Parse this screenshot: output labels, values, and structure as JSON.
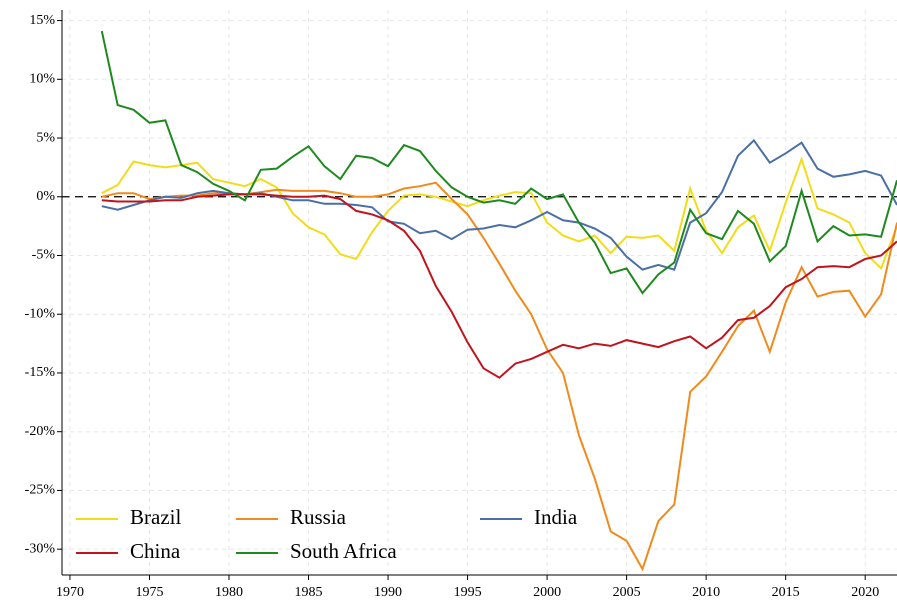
{
  "chart_data": {
    "type": "line",
    "x": [
      1972,
      1973,
      1974,
      1975,
      1976,
      1977,
      1978,
      1979,
      1980,
      1981,
      1982,
      1983,
      1984,
      1985,
      1986,
      1987,
      1988,
      1989,
      1990,
      1991,
      1992,
      1993,
      1994,
      1995,
      1996,
      1997,
      1998,
      1999,
      2000,
      2001,
      2002,
      2003,
      2004,
      2005,
      2006,
      2007,
      2008,
      2009,
      2010,
      2011,
      2012,
      2013,
      2014,
      2015,
      2016,
      2017,
      2018,
      2019,
      2020,
      2021,
      2022
    ],
    "series": [
      {
        "name": "Brazil",
        "color": "#f2dc1a",
        "values": [
          0.3,
          1.0,
          3.0,
          2.7,
          2.5,
          2.7,
          2.9,
          1.5,
          1.2,
          0.9,
          1.5,
          0.8,
          -1.4,
          -2.6,
          -3.2,
          -4.9,
          -5.3,
          -3.0,
          -1.2,
          0.1,
          0.2,
          0.0,
          -0.4,
          -0.8,
          -0.3,
          0.1,
          0.4,
          0.3,
          -2.2,
          -3.3,
          -3.8,
          -3.3,
          -4.8,
          -3.4,
          -3.5,
          -3.3,
          -4.6,
          0.7,
          -2.9,
          -4.8,
          -2.6,
          -1.6,
          -4.6,
          -0.5,
          3.2,
          -1.0,
          -1.5,
          -2.2,
          -4.8,
          -6.1,
          -2.5
        ]
      },
      {
        "name": "Russia",
        "color": "#f08a1c",
        "values": [
          0.0,
          0.3,
          0.3,
          -0.2,
          0.0,
          0.1,
          0.1,
          0.3,
          0.3,
          0.2,
          0.4,
          0.6,
          0.5,
          0.5,
          0.5,
          0.3,
          0.0,
          0.0,
          0.2,
          0.7,
          0.9,
          1.2,
          -0.2,
          -1.5,
          -3.5,
          -5.7,
          -8.0,
          -10.0,
          -13.0,
          -15.0,
          -20.3,
          -24.0,
          -28.5,
          -29.3,
          -31.7,
          -27.6,
          -26.2,
          -16.6,
          -15.3,
          -13.2,
          -11.0,
          -9.7,
          -13.2,
          -9.0,
          -6.0,
          -8.5,
          -8.1,
          -8.0,
          -10.2,
          -8.3,
          -2.2
        ]
      },
      {
        "name": "India",
        "color": "#4a6fa5",
        "values": [
          -0.8,
          -1.1,
          -0.7,
          -0.3,
          0.0,
          -0.1,
          0.3,
          0.5,
          0.3,
          0.2,
          0.3,
          0.0,
          -0.3,
          -0.3,
          -0.6,
          -0.6,
          -0.7,
          -0.9,
          -2.1,
          -2.3,
          -3.1,
          -2.9,
          -3.6,
          -2.8,
          -2.7,
          -2.4,
          -2.6,
          -2.0,
          -1.3,
          -2.0,
          -2.2,
          -2.7,
          -3.5,
          -5.1,
          -6.2,
          -5.8,
          -6.2,
          -2.2,
          -1.4,
          0.4,
          3.5,
          4.8,
          2.9,
          3.7,
          4.6,
          2.4,
          1.7,
          1.9,
          2.2,
          1.8,
          -0.7
        ]
      },
      {
        "name": "China",
        "color": "#c0141c",
        "values": [
          -0.3,
          -0.4,
          -0.4,
          -0.4,
          -0.3,
          -0.3,
          0.0,
          0.1,
          0.2,
          0.2,
          0.2,
          0.1,
          0.0,
          0.0,
          0.1,
          -0.2,
          -1.2,
          -1.5,
          -2.0,
          -2.9,
          -4.6,
          -7.6,
          -9.8,
          -12.4,
          -14.6,
          -15.4,
          -14.2,
          -13.8,
          -13.2,
          -12.6,
          -12.9,
          -12.5,
          -12.7,
          -12.2,
          -12.5,
          -12.8,
          -12.3,
          -11.9,
          -12.9,
          -12.0,
          -10.5,
          -10.3,
          -9.3,
          -7.7,
          -7.0,
          -6.0,
          -5.9,
          -6.0,
          -5.3,
          -5.0,
          -3.8
        ]
      },
      {
        "name": "South Africa",
        "color": "#1e8a1e",
        "values": [
          14.1,
          7.8,
          7.4,
          6.3,
          6.5,
          2.7,
          2.1,
          1.1,
          0.5,
          -0.3,
          2.3,
          2.4,
          3.4,
          4.3,
          2.6,
          1.5,
          3.5,
          3.3,
          2.6,
          4.4,
          3.9,
          2.2,
          0.8,
          0.0,
          -0.5,
          -0.3,
          -0.6,
          0.7,
          -0.2,
          0.2,
          -2.2,
          -3.9,
          -6.5,
          -6.1,
          -8.2,
          -6.6,
          -5.6,
          -1.1,
          -3.1,
          -3.6,
          -1.2,
          -2.3,
          -5.5,
          -4.2,
          0.5,
          -3.8,
          -2.5,
          -3.3,
          -3.2,
          -3.4,
          1.4
        ]
      }
    ],
    "xlim": [
      1969.5,
      2022
    ],
    "xticks": [
      1970,
      1975,
      1980,
      1985,
      1990,
      1995,
      2000,
      2005,
      2010,
      2015,
      2020
    ],
    "ylim": [
      -32.2,
      15.9
    ],
    "yticks": [
      {
        "value": -30,
        "label": "-30%"
      },
      {
        "value": -25,
        "label": "-25%"
      },
      {
        "value": -20,
        "label": "-20%"
      },
      {
        "value": -15,
        "label": "-15%"
      },
      {
        "value": -10,
        "label": "-10%"
      },
      {
        "value": -5,
        "label": "-5%"
      },
      {
        "value": 0,
        "label": "0%"
      },
      {
        "value": 5,
        "label": "5%"
      },
      {
        "value": 10,
        "label": "10%"
      },
      {
        "value": 15,
        "label": "15%"
      }
    ],
    "grid": true,
    "legend": "lower left"
  }
}
